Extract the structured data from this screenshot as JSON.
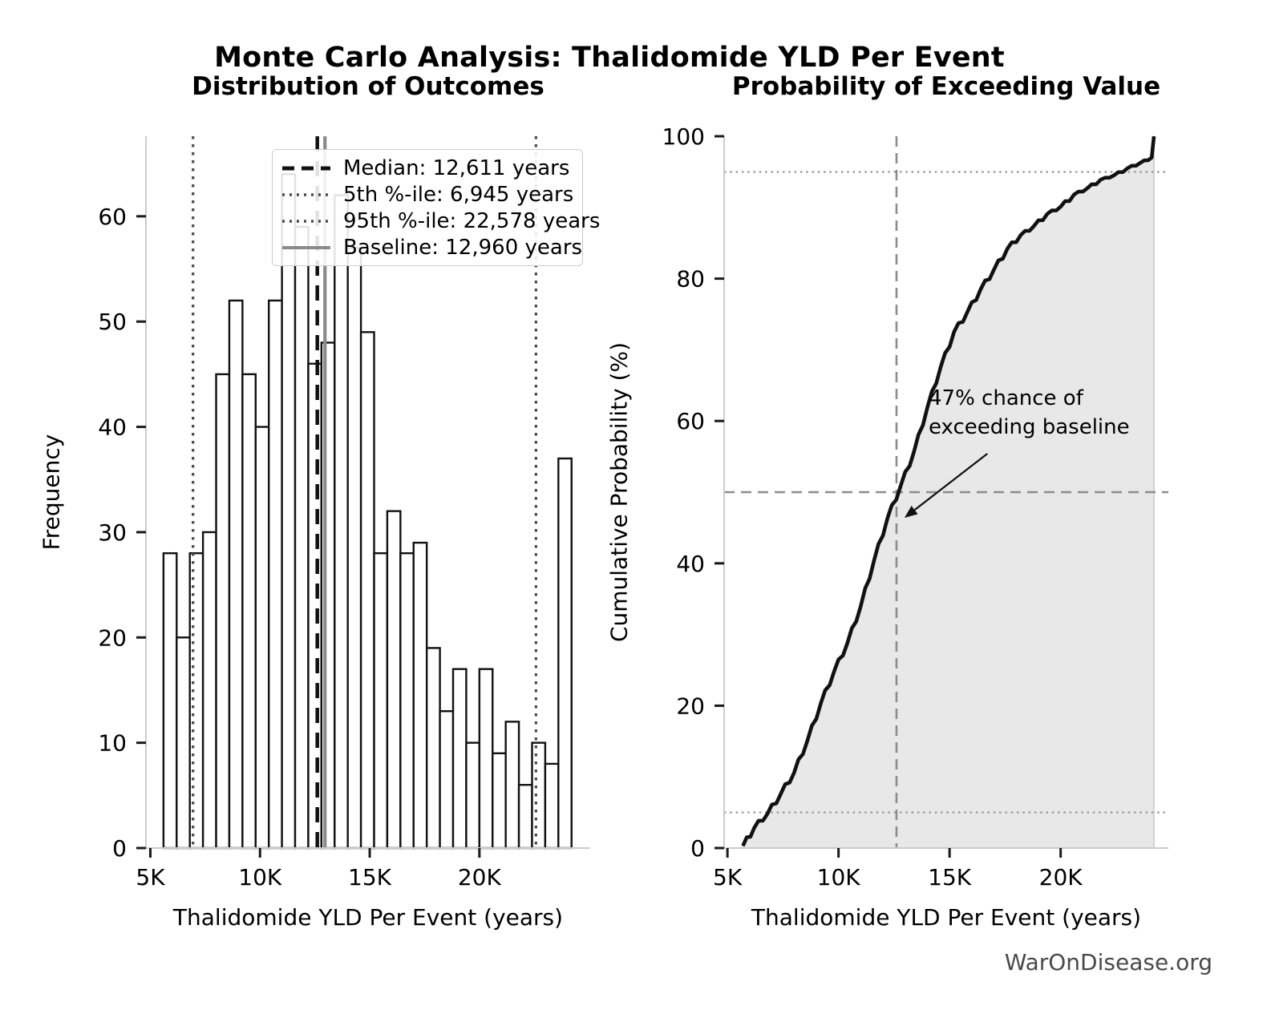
{
  "title": "Monte Carlo Analysis: Thalidomide YLD Per Event",
  "watermark": "WarOnDisease.org",
  "left_plot": {
    "title": "Distribution of Outcomes",
    "xlabel": "Thalidomide YLD Per Event (years)",
    "ylabel": "Frequency",
    "legend": [
      {
        "label": "Median: 12,611 years",
        "style": "dashed-black"
      },
      {
        "label": "5th %-ile: 6,945 years",
        "style": "dotted-gray"
      },
      {
        "label": "95th %-ile: 22,578 years",
        "style": "dotted-gray"
      },
      {
        "label": "Baseline: 12,960 years",
        "style": "solid-gray"
      }
    ]
  },
  "right_plot": {
    "title": "Probability of Exceeding Value",
    "xlabel": "Thalidomide YLD Per Event (years)",
    "ylabel": "Cumulative Probability (%)",
    "annotation": {
      "line1": "47% chance of",
      "line2": "exceeding baseline",
      "text_pos_data": [
        14092,
        65.0
      ],
      "arrow_tail_data": [
        16700,
        55.4
      ],
      "arrow_tip_data": [
        12970,
        46.4
      ]
    }
  },
  "chart_data": [
    {
      "type": "bar",
      "subtype": "histogram",
      "title": "Distribution of Outcomes",
      "xlabel": "Thalidomide YLD Per Event (years)",
      "ylabel": "Frequency",
      "bin_start": 5600,
      "bin_width": 600,
      "counts": [
        28,
        20,
        28,
        30,
        45,
        52,
        45,
        40,
        52,
        64,
        59,
        46,
        48,
        62,
        57,
        49,
        28,
        32,
        28,
        29,
        19,
        13,
        17,
        10,
        17,
        9,
        12,
        6,
        10,
        8,
        37
      ],
      "total_count": 1000,
      "xlim": [
        4800,
        25050
      ],
      "ylim": [
        0,
        67.6
      ],
      "x_ticks": [
        {
          "value": 5000,
          "label": "5K"
        },
        {
          "value": 10000,
          "label": "10K"
        },
        {
          "value": 15000,
          "label": "15K"
        },
        {
          "value": 20000,
          "label": "20K"
        }
      ],
      "y_ticks": [
        0,
        10,
        20,
        30,
        40,
        50,
        60
      ],
      "grid": false,
      "legend_position": "upper-center",
      "vlines": [
        {
          "name": "median",
          "value": 12611,
          "style": "dashed",
          "width": 4.5
        },
        {
          "name": "p5",
          "value": 6945,
          "style": "dotted",
          "width": 3.2
        },
        {
          "name": "p95",
          "value": 22578,
          "style": "dotted",
          "width": 3.2
        },
        {
          "name": "baseline",
          "value": 12960,
          "style": "solid",
          "width": 4.2
        }
      ]
    },
    {
      "type": "line",
      "subtype": "ecdf",
      "title": "Probability of Exceeding Value",
      "xlabel": "Thalidomide YLD Per Event (years)",
      "ylabel": "Cumulative Probability (%)",
      "x": [
        5700,
        6200,
        6800,
        7400,
        8000,
        8600,
        9200,
        9800,
        10400,
        11000,
        11600,
        12200,
        12800,
        13400,
        14000,
        14600,
        15200,
        15800,
        16400,
        17000,
        17600,
        18200,
        18800,
        19400,
        20000,
        20600,
        21200,
        21800,
        22400,
        23000,
        23600,
        24100,
        24200
      ],
      "y": [
        0.3,
        2.8,
        4.8,
        7.6,
        10.6,
        15.1,
        20.3,
        24.8,
        28.8,
        34.0,
        40.4,
        46.3,
        50.9,
        55.7,
        61.9,
        67.6,
        72.5,
        75.3,
        78.5,
        81.3,
        84.2,
        86.1,
        87.4,
        89.1,
        90.1,
        91.8,
        92.7,
        93.9,
        94.5,
        95.5,
        96.3,
        97.0,
        100.0
      ],
      "fill_under": true,
      "xlim": [
        4850,
        24850
      ],
      "ylim": [
        0,
        100
      ],
      "x_ticks": [
        {
          "value": 5000,
          "label": "5K"
        },
        {
          "value": 10000,
          "label": "10K"
        },
        {
          "value": 15000,
          "label": "15K"
        },
        {
          "value": 20000,
          "label": "20K"
        }
      ],
      "y_ticks": [
        0,
        20,
        40,
        60,
        80,
        100
      ],
      "grid": false,
      "ref_lines": [
        {
          "name": "p5-level",
          "orientation": "horizontal",
          "value": 5,
          "style": "dotted"
        },
        {
          "name": "p95-level",
          "orientation": "horizontal",
          "value": 95,
          "style": "dotted"
        },
        {
          "name": "median-level",
          "orientation": "horizontal",
          "value": 50,
          "style": "dashed"
        },
        {
          "name": "median-value",
          "orientation": "vertical",
          "value": 12611,
          "style": "dashed"
        }
      ]
    }
  ],
  "colors": {
    "bar_fill": "#ffffff",
    "bar_edge": "#111111",
    "median_line": "#111111",
    "percentile_line": "#4a4a4a",
    "baseline_line": "#8a8a8a",
    "cdf_line": "#111111",
    "cdf_fill": "#e8e8e8",
    "cdf_fill_edge": "#c9c9c9",
    "ref_dotted": "#9a9a9a",
    "ref_dashed": "#8c8c8c",
    "spine": "#cccccc",
    "tick": "#1a1a1a",
    "text": "#000000",
    "watermark": "#4a4a4a"
  }
}
